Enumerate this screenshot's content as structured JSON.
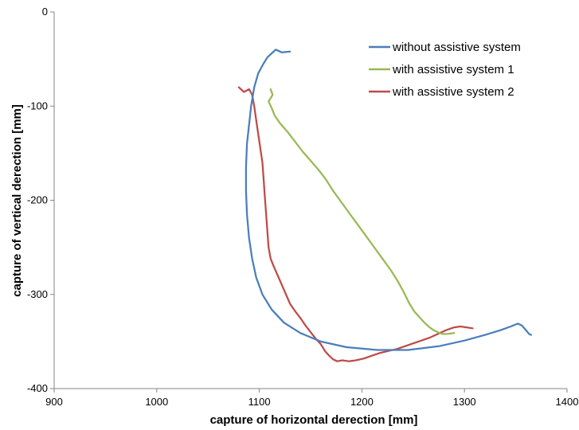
{
  "chart_data": {
    "type": "line",
    "title": "",
    "xlabel": "capture of horizontal derection [mm]",
    "ylabel": "capture of vertical derection [mm]",
    "xlim": [
      900,
      1400
    ],
    "ylim": [
      -400,
      0
    ],
    "x_ticks": [
      "900",
      "1000",
      "1100",
      "1200",
      "1300",
      "1400"
    ],
    "y_ticks": [
      "0",
      "-100",
      "-200",
      "-300",
      "-400"
    ],
    "grid": false,
    "legend_position": "top-right",
    "series": [
      {
        "name": "without assistive system",
        "color": "#4a7ebb",
        "x": [
          1130,
          1122,
          1116,
          1112,
          1108,
          1104,
          1099,
          1095,
          1092,
          1090,
          1088,
          1087,
          1087,
          1088,
          1090,
          1093,
          1097,
          1103,
          1112,
          1124,
          1140,
          1160,
          1185,
          1215,
          1245,
          1275,
          1300,
          1320,
          1335,
          1345,
          1352,
          1356,
          1360,
          1363,
          1365
        ],
        "y": [
          -42,
          -43,
          -40,
          -44,
          -48,
          -55,
          -65,
          -80,
          -100,
          -120,
          -140,
          -165,
          -190,
          -215,
          -240,
          -262,
          -282,
          -300,
          -316,
          -330,
          -341,
          -350,
          -356,
          -359,
          -359,
          -355,
          -349,
          -343,
          -338,
          -334,
          -331,
          -333,
          -338,
          -342,
          -343
        ]
      },
      {
        "name": "with assistive system 1",
        "color": "#98b954",
        "x": [
          1111,
          1113,
          1109,
          1112,
          1115,
          1120,
          1128,
          1135,
          1142,
          1150,
          1158,
          1165,
          1172,
          1180,
          1188,
          1196,
          1204,
          1212,
          1220,
          1228,
          1235,
          1241,
          1246,
          1251,
          1256,
          1261,
          1266,
          1270,
          1274,
          1278,
          1283,
          1290
        ],
        "y": [
          -82,
          -88,
          -95,
          -102,
          -110,
          -118,
          -128,
          -138,
          -148,
          -158,
          -168,
          -178,
          -190,
          -202,
          -214,
          -226,
          -238,
          -250,
          -262,
          -274,
          -286,
          -298,
          -309,
          -318,
          -324,
          -330,
          -335,
          -338,
          -340,
          -342,
          -342,
          -341
        ]
      },
      {
        "name": "with assistive system 2",
        "color": "#be4b48",
        "x": [
          1080,
          1085,
          1090,
          1093,
          1095,
          1097,
          1099,
          1101,
          1103,
          1104,
          1105,
          1106,
          1107,
          1108,
          1109,
          1111,
          1114,
          1118,
          1122,
          1126,
          1130,
          1135,
          1140,
          1145,
          1150,
          1155,
          1160,
          1164,
          1168,
          1172,
          1176,
          1181,
          1187,
          1194,
          1202,
          1210,
          1218,
          1226,
          1234,
          1242,
          1250,
          1258,
          1266,
          1274,
          1282,
          1290,
          1296,
          1302,
          1308
        ],
        "y": [
          -80,
          -85,
          -82,
          -88,
          -100,
          -115,
          -130,
          -145,
          -160,
          -175,
          -190,
          -205,
          -220,
          -235,
          -250,
          -262,
          -270,
          -280,
          -290,
          -300,
          -310,
          -318,
          -325,
          -333,
          -340,
          -347,
          -353,
          -360,
          -365,
          -369,
          -371,
          -370,
          -371,
          -370,
          -368,
          -365,
          -362,
          -360,
          -358,
          -355,
          -352,
          -349,
          -346,
          -342,
          -338,
          -335,
          -334,
          -335,
          -336
        ]
      }
    ]
  }
}
